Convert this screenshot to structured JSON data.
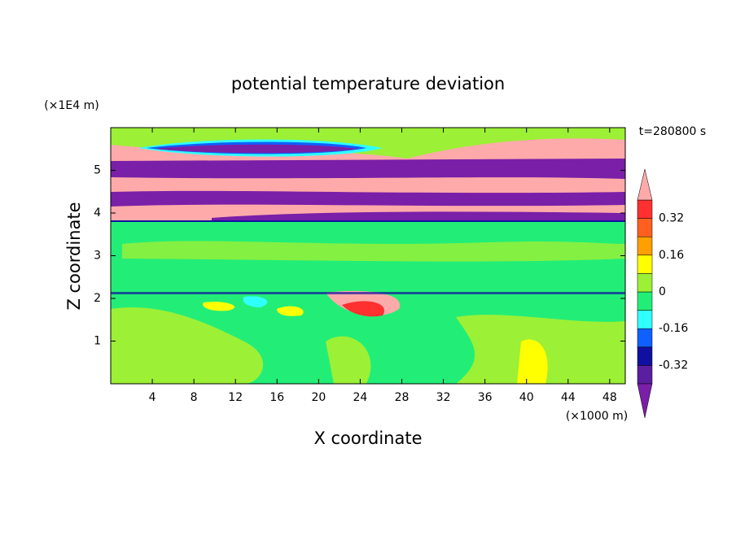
{
  "chart_data": {
    "type": "contour",
    "title": "potential temperature deviation",
    "x_label": "X coordinate",
    "y_label": "Z coordinate",
    "x_unit": "(×1000 m)",
    "y_unit": "(×1E4 m)",
    "annotation": "t=280800 s",
    "xlim": [
      0,
      49.5
    ],
    "xticks": [
      4,
      8,
      12,
      16,
      20,
      24,
      28,
      32,
      36,
      40,
      44,
      48
    ],
    "ylim": [
      0,
      6
    ],
    "yticks": [
      1,
      2,
      3,
      4,
      5
    ],
    "colorbar": {
      "levels": [
        -0.4,
        -0.32,
        -0.24,
        -0.16,
        -0.08,
        0,
        0.08,
        0.16,
        0.24,
        0.32,
        0.4
      ],
      "colors": [
        "#7a1fa8",
        "#5a1ea0",
        "#1010a0",
        "#1060ff",
        "#30ffff",
        "#22ee77",
        "#9cf035",
        "#ffff00",
        "#ffa000",
        "#ff6020",
        "#ff3030",
        "#ffaaaa"
      ],
      "ticks": [
        -0.32,
        -0.16,
        0,
        0.16,
        0.32
      ]
    }
  }
}
